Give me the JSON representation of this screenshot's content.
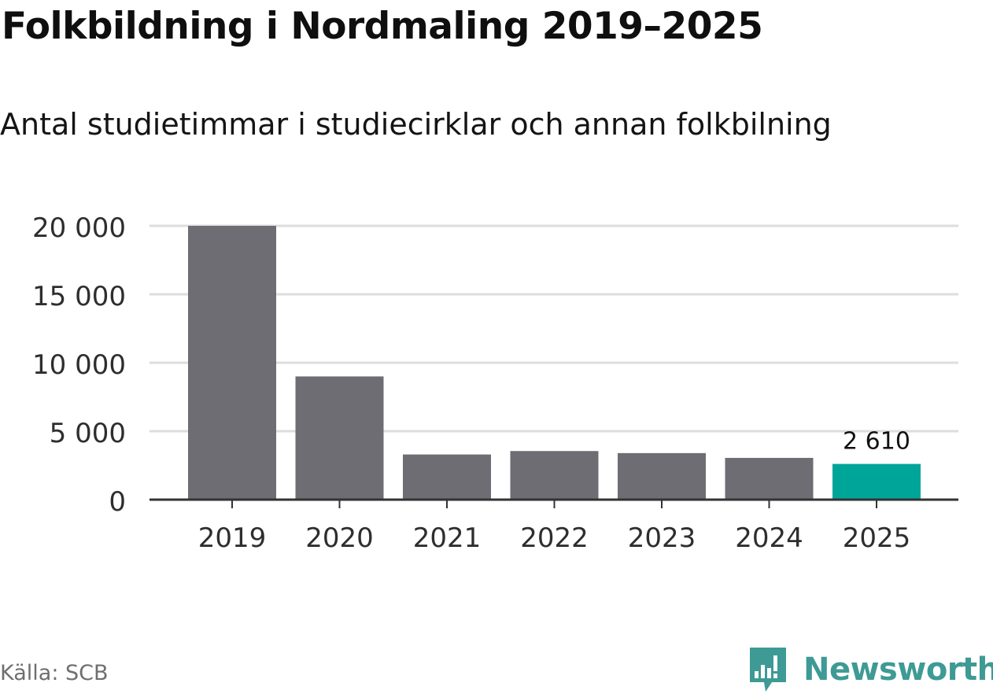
{
  "chart_data": {
    "type": "bar",
    "title": "Folkbildning i Nordmaling 2019–2025",
    "subtitle": "Antal studietimmar i studiecirklar och annan folkbilning",
    "categories": [
      "2019",
      "2020",
      "2021",
      "2022",
      "2023",
      "2024",
      "2025"
    ],
    "values": [
      20000,
      9000,
      3300,
      3550,
      3400,
      3050,
      2610
    ],
    "highlight_index": 6,
    "data_labels": [
      {
        "category": "2025",
        "text": "2 610"
      }
    ],
    "ylim": [
      0,
      20000
    ],
    "yticks": [
      0,
      5000,
      10000,
      15000,
      20000
    ],
    "ytick_labels": [
      "0",
      "5 000",
      "10 000",
      "15 000",
      "20 000"
    ],
    "xlabel": "",
    "ylabel": "",
    "grid": true,
    "colors": {
      "bar": "#6e6d73",
      "highlight": "#00a59a",
      "grid": "#dddddd",
      "axis": "#333333"
    }
  },
  "footer": {
    "source": "Källa: SCB",
    "brand": "Newsworthy"
  },
  "icons": {
    "logo": "newsworthy-logo-icon"
  }
}
